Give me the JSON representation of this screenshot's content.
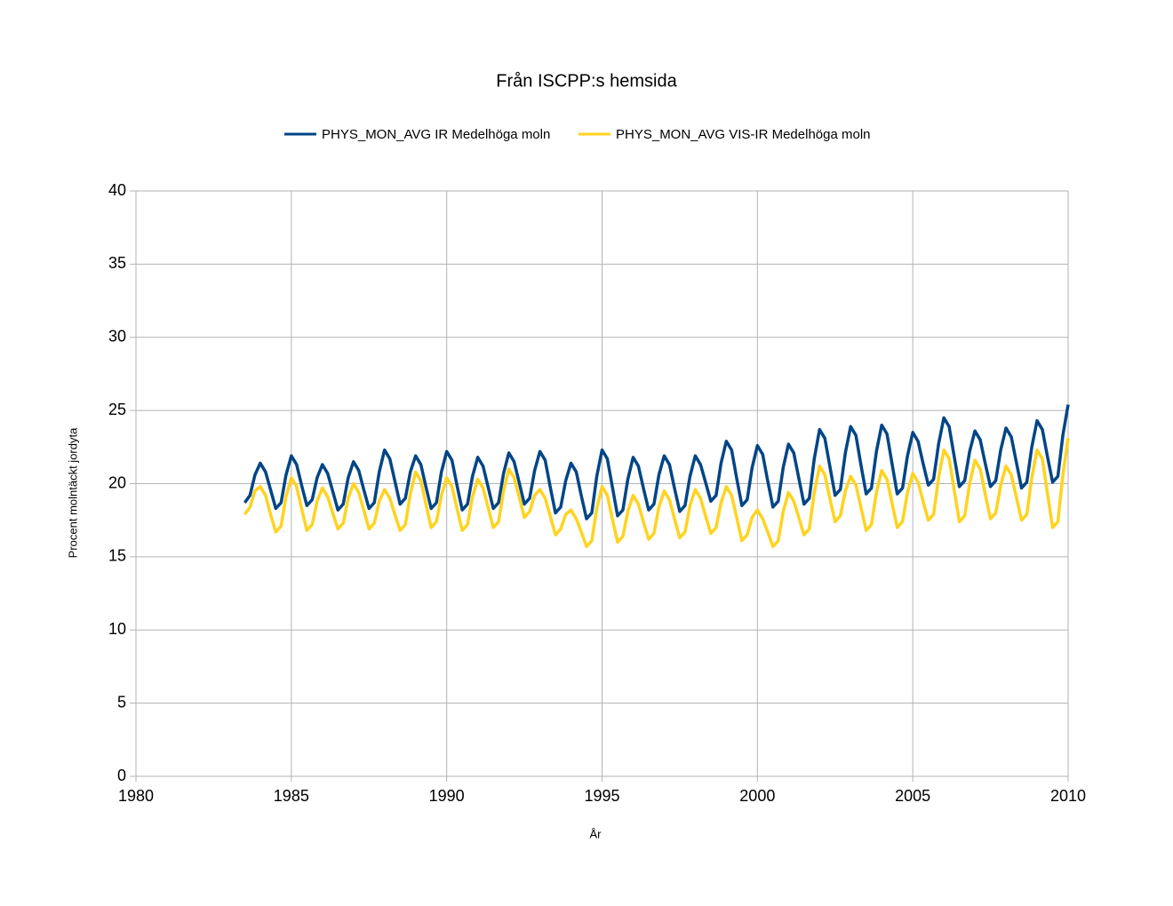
{
  "chart_data": {
    "type": "line",
    "title": "Från ISCPP:s hemsida",
    "xlabel": "År",
    "ylabel": "Procent molntäckt jordyta",
    "xlim": [
      1980,
      2010
    ],
    "xticks": [
      1980,
      1985,
      1990,
      1995,
      2000,
      2005,
      2010
    ],
    "ylim": [
      0,
      40
    ],
    "yticks": [
      0,
      5,
      10,
      15,
      20,
      25,
      30,
      35,
      40
    ],
    "grid": true,
    "legend": "top",
    "x": [
      1983.5,
      1983.67,
      1983.83,
      1984,
      1984.17,
      1984.33,
      1984.5,
      1984.67,
      1984.83,
      1985,
      1985.17,
      1985.33,
      1985.5,
      1985.67,
      1985.83,
      1986,
      1986.17,
      1986.33,
      1986.5,
      1986.67,
      1986.83,
      1987,
      1987.17,
      1987.33,
      1987.5,
      1987.67,
      1987.83,
      1988,
      1988.17,
      1988.33,
      1988.5,
      1988.67,
      1988.83,
      1989,
      1989.17,
      1989.33,
      1989.5,
      1989.67,
      1989.83,
      1990,
      1990.17,
      1990.33,
      1990.5,
      1990.67,
      1990.83,
      1991,
      1991.17,
      1991.33,
      1991.5,
      1991.67,
      1991.83,
      1992,
      1992.17,
      1992.33,
      1992.5,
      1992.67,
      1992.83,
      1993,
      1993.17,
      1993.33,
      1993.5,
      1993.67,
      1993.83,
      1994,
      1994.17,
      1994.33,
      1994.5,
      1994.67,
      1994.83,
      1995,
      1995.17,
      1995.33,
      1995.5,
      1995.67,
      1995.83,
      1996,
      1996.17,
      1996.33,
      1996.5,
      1996.67,
      1996.83,
      1997,
      1997.17,
      1997.33,
      1997.5,
      1997.67,
      1997.83,
      1998,
      1998.17,
      1998.33,
      1998.5,
      1998.67,
      1998.83,
      1999,
      1999.17,
      1999.33,
      1999.5,
      1999.67,
      1999.83,
      2000,
      2000.17,
      2000.33,
      2000.5,
      2000.67,
      2000.83,
      2001,
      2001.17,
      2001.33,
      2001.5,
      2001.67,
      2001.83,
      2002,
      2002.17,
      2002.33,
      2002.5,
      2002.67,
      2002.83,
      2003,
      2003.17,
      2003.33,
      2003.5,
      2003.67,
      2003.83,
      2004,
      2004.17,
      2004.33,
      2004.5,
      2004.67,
      2004.83,
      2005,
      2005.17,
      2005.33,
      2005.5,
      2005.67,
      2005.83,
      2006,
      2006.17,
      2006.33,
      2006.5,
      2006.67,
      2006.83,
      2007,
      2007.17,
      2007.33,
      2007.5,
      2007.67,
      2007.83,
      2008,
      2008.17,
      2008.33,
      2008.5,
      2008.67,
      2008.83,
      2009,
      2009.17,
      2009.33,
      2009.5,
      2009.67,
      2009.83,
      2010
    ],
    "series": [
      {
        "name": "PHYS_MON_AVG IR Medelhöga moln",
        "color": "#004586",
        "values": [
          18.7,
          19.2,
          20.6,
          21.4,
          20.8,
          19.6,
          18.3,
          18.7,
          20.6,
          21.9,
          21.3,
          19.9,
          18.5,
          18.9,
          20.4,
          21.3,
          20.7,
          19.5,
          18.2,
          18.6,
          20.4,
          21.5,
          20.9,
          19.6,
          18.3,
          18.7,
          20.8,
          22.3,
          21.7,
          20.2,
          18.6,
          19.0,
          20.8,
          21.9,
          21.3,
          19.8,
          18.3,
          18.7,
          20.8,
          22.2,
          21.6,
          19.9,
          18.2,
          18.6,
          20.5,
          21.8,
          21.2,
          19.8,
          18.3,
          18.7,
          20.7,
          22.1,
          21.5,
          20.1,
          18.6,
          19.0,
          20.9,
          22.2,
          21.6,
          19.8,
          18.0,
          18.4,
          20.2,
          21.4,
          20.8,
          19.2,
          17.6,
          18.0,
          20.5,
          22.3,
          21.7,
          19.8,
          17.8,
          18.2,
          20.3,
          21.8,
          21.2,
          19.7,
          18.2,
          18.6,
          20.6,
          21.9,
          21.3,
          19.7,
          18.1,
          18.5,
          20.5,
          21.9,
          21.3,
          20.1,
          18.8,
          19.2,
          21.4,
          22.9,
          22.3,
          20.4,
          18.5,
          18.9,
          21.1,
          22.6,
          22.0,
          20.2,
          18.4,
          18.8,
          21.1,
          22.7,
          22.1,
          20.4,
          18.6,
          19.0,
          21.7,
          23.7,
          23.1,
          21.2,
          19.2,
          19.6,
          22.1,
          23.9,
          23.3,
          21.3,
          19.3,
          19.7,
          22.2,
          24.0,
          23.4,
          21.4,
          19.3,
          19.7,
          21.9,
          23.5,
          22.9,
          21.4,
          19.9,
          20.3,
          22.7,
          24.5,
          23.9,
          21.9,
          19.8,
          20.2,
          22.2,
          23.6,
          23.0,
          21.4,
          19.8,
          20.2,
          22.3,
          23.8,
          23.2,
          21.5,
          19.7,
          20.1,
          22.5,
          24.3,
          23.7,
          21.9,
          20.1,
          20.5,
          23.3,
          25.4
        ]
      },
      {
        "name": "PHYS_MON_AVG VIS-IR Medelhöga moln",
        "color": "#ffd320",
        "values": [
          17.9,
          18.4,
          19.5,
          19.8,
          19.2,
          17.9,
          16.7,
          17.1,
          19.1,
          20.4,
          19.8,
          18.3,
          16.8,
          17.2,
          18.8,
          19.7,
          19.1,
          18.0,
          16.9,
          17.3,
          19.0,
          20.0,
          19.4,
          18.2,
          16.9,
          17.3,
          18.8,
          19.6,
          19.0,
          17.9,
          16.8,
          17.2,
          19.3,
          20.8,
          20.2,
          18.6,
          17.0,
          17.4,
          19.2,
          20.4,
          19.8,
          18.3,
          16.8,
          17.2,
          19.1,
          20.3,
          19.7,
          18.4,
          17.0,
          17.4,
          19.5,
          21.0,
          20.4,
          19.1,
          17.7,
          18.1,
          19.2,
          19.6,
          19.0,
          17.8,
          16.5,
          16.9,
          17.9,
          18.2,
          17.6,
          16.7,
          15.7,
          16.1,
          18.3,
          19.8,
          19.2,
          17.6,
          16.0,
          16.4,
          18.1,
          19.2,
          18.6,
          17.4,
          16.2,
          16.6,
          18.4,
          19.5,
          18.9,
          17.6,
          16.3,
          16.7,
          18.5,
          19.6,
          19.0,
          17.8,
          16.6,
          17.0,
          18.7,
          19.8,
          19.2,
          17.7,
          16.1,
          16.5,
          17.7,
          18.2,
          17.6,
          16.7,
          15.7,
          16.1,
          18.1,
          19.4,
          18.8,
          17.7,
          16.5,
          16.9,
          19.4,
          21.2,
          20.6,
          19.0,
          17.4,
          17.8,
          19.5,
          20.5,
          19.9,
          18.4,
          16.8,
          17.2,
          19.4,
          20.9,
          20.3,
          18.7,
          17.0,
          17.4,
          19.4,
          20.7,
          20.1,
          18.8,
          17.5,
          17.9,
          20.4,
          22.3,
          21.7,
          19.6,
          17.4,
          17.8,
          20.0,
          21.6,
          21.0,
          19.3,
          17.6,
          18.0,
          19.9,
          21.2,
          20.6,
          19.1,
          17.5,
          17.9,
          20.4,
          22.3,
          21.7,
          19.4,
          17.0,
          17.4,
          20.6,
          23.1
        ]
      }
    ]
  }
}
